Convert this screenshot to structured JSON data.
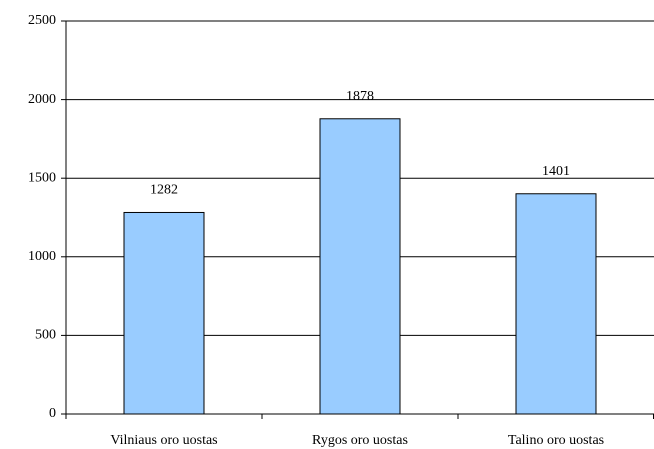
{
  "chart_data": {
    "type": "bar",
    "categories": [
      "Vilniaus oro uostas",
      "Rygos oro uostas",
      "Talino oro uostas"
    ],
    "values": [
      1282,
      1878,
      1401
    ],
    "color": "#99ccff",
    "ylim": [
      0,
      2500
    ],
    "yticks": [
      0,
      500,
      1000,
      1500,
      2000,
      2500
    ],
    "grid": true
  }
}
